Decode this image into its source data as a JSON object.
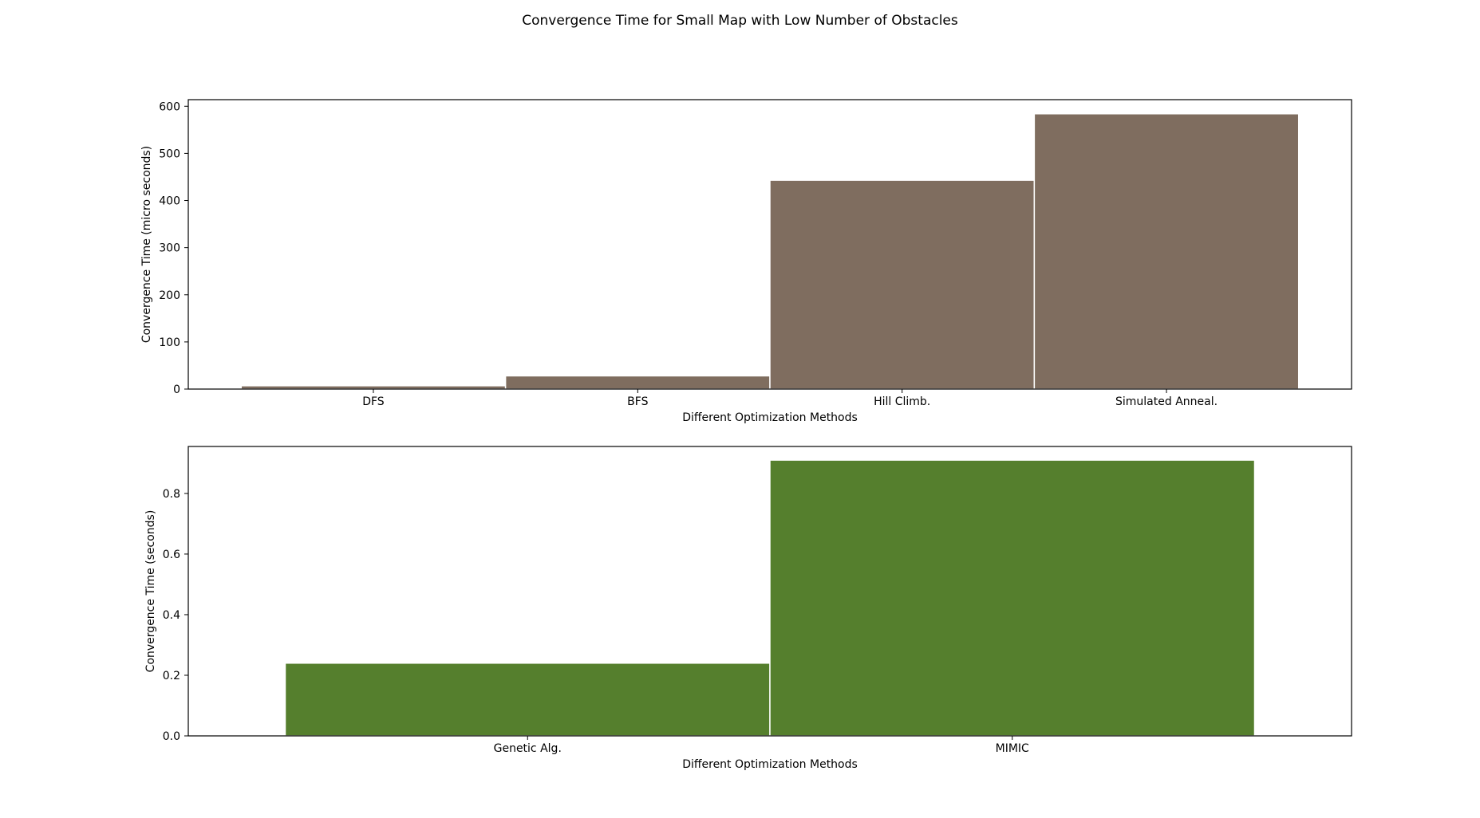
{
  "figure": {
    "title": "Convergence Time for Small Map with Low Number of Obstacles"
  },
  "chart_data": [
    {
      "type": "bar",
      "categories": [
        "DFS",
        "BFS",
        "Hill Climb.",
        "Simulated Anneal."
      ],
      "values": [
        7,
        28,
        443,
        584
      ],
      "xlabel": "Different Optimization Methods",
      "ylabel": "Convergence Time (micro seconds)",
      "ylim": [
        0,
        614
      ],
      "yticks": [
        0,
        100,
        200,
        300,
        400,
        500,
        600
      ],
      "ytick_labels": [
        "0",
        "100",
        "200",
        "300",
        "400",
        "500",
        "600"
      ],
      "color": "#7f6d5f",
      "grid": false,
      "legend": "none"
    },
    {
      "type": "bar",
      "categories": [
        "Genetic Alg.",
        "MIMIC"
      ],
      "values": [
        0.24,
        0.91
      ],
      "xlabel": "Different Optimization Methods",
      "ylabel": "Convergence Time (seconds)",
      "ylim": [
        0,
        0.955
      ],
      "yticks": [
        0.0,
        0.2,
        0.4,
        0.6,
        0.8
      ],
      "ytick_labels": [
        "0.0",
        "0.2",
        "0.4",
        "0.6",
        "0.8"
      ],
      "color": "#557f2d",
      "grid": false,
      "legend": "none"
    }
  ]
}
